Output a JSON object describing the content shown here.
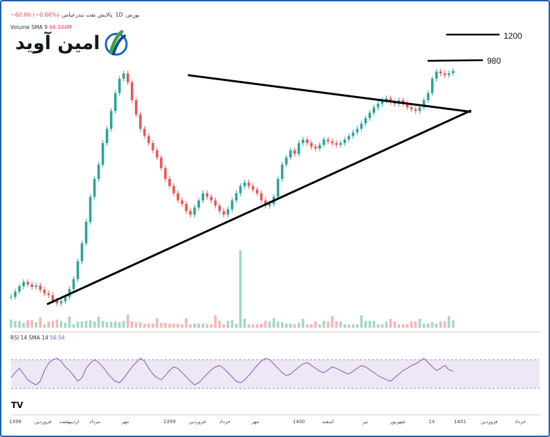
{
  "header": {
    "symbol": "بورس",
    "interval": "1D",
    "name": "پالایش نفت بندرعباس",
    "change": "−60.00 (−0.66%)"
  },
  "volume_label": {
    "text": "Volume SMA 9",
    "value": "66.044M"
  },
  "rsi_label": {
    "text": "RSI 14 SMA 14",
    "value": "56.54"
  },
  "logo": {
    "text": "امین آوید",
    "icon": "aminavid-logo-icon",
    "colors": [
      "#1565c0",
      "#43a047",
      "#0d47a1"
    ]
  },
  "annotations": {
    "level_high": "1200",
    "level_mid": "980"
  },
  "chart_data": {
    "type": "candlestick",
    "x_ticks": [
      "1398",
      "فروردین",
      "اردیبهشت",
      "مرداد",
      "مهر",
      "1399",
      "فروردین",
      "خرداد",
      "مهر",
      "1400",
      "اسفند",
      "تیر",
      "شهریور",
      "14",
      "1401",
      "فروردین",
      "خرداد"
    ],
    "price_series": {
      "name": "",
      "close": [
        330,
        345,
        360,
        372,
        365,
        358,
        362,
        350,
        340,
        335,
        320,
        312,
        318,
        330,
        352,
        380,
        430,
        480,
        540,
        610,
        660,
        700,
        760,
        800,
        850,
        900,
        940,
        955,
        930,
        880,
        840,
        800,
        780,
        760,
        740,
        720,
        690,
        660,
        640,
        620,
        600,
        590,
        570,
        560,
        580,
        600,
        620,
        610,
        600,
        585,
        570,
        560,
        575,
        600,
        620,
        640,
        650,
        640,
        630,
        620,
        600,
        585,
        590,
        610,
        660,
        700,
        720,
        740,
        730,
        760,
        770,
        760,
        750,
        745,
        755,
        770,
        765,
        760,
        755,
        760,
        770,
        780,
        790,
        800,
        815,
        830,
        845,
        860,
        870,
        880,
        885,
        875,
        870,
        880,
        870,
        860,
        855,
        850,
        860,
        880,
        900,
        940,
        960,
        955,
        950,
        955,
        962
      ]
    },
    "trendlines": [
      {
        "name": "",
        "from": [
          0,
          325
        ],
        "to": [
          106,
          948
        ]
      },
      {
        "name": "",
        "from": [
          20,
          950
        ],
        "to": [
          106,
          890
        ]
      }
    ],
    "levels": [
      1200,
      980
    ],
    "rsi": {
      "values": [
        45,
        52,
        58,
        50,
        42,
        38,
        35,
        40,
        55,
        65,
        70,
        72,
        68,
        60,
        55,
        48,
        40,
        45,
        58,
        65,
        70,
        66,
        60,
        52,
        45,
        40,
        38,
        44,
        52,
        60,
        66,
        72,
        68,
        58,
        50,
        45,
        42,
        48,
        55,
        60,
        58,
        52,
        46,
        40,
        35,
        38,
        44,
        50,
        56,
        60,
        62,
        58,
        52,
        46,
        40,
        38,
        42,
        48,
        55,
        62,
        68,
        72,
        70,
        64,
        58,
        52,
        48,
        50,
        55,
        60,
        64,
        66,
        62,
        58,
        54,
        52,
        56,
        60,
        58,
        55,
        52,
        50,
        54,
        58,
        62,
        60,
        56,
        52,
        48,
        45,
        42,
        40,
        45,
        50,
        55,
        58,
        62,
        64,
        68,
        72,
        66,
        60,
        55,
        58,
        62,
        56,
        54
      ],
      "upper": 70,
      "lower": 30,
      "ylim": [
        0,
        100
      ]
    }
  }
}
